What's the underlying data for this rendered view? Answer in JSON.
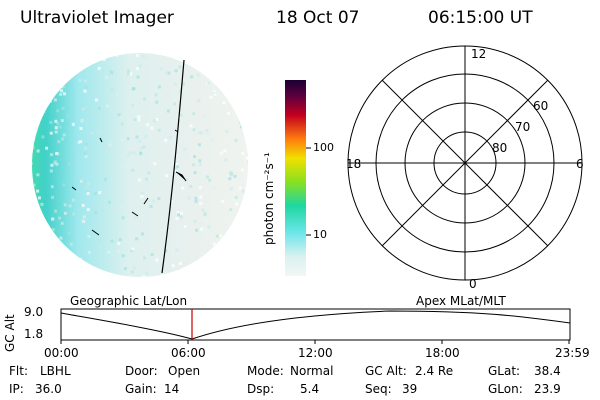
{
  "header": {
    "instrument": "Ultraviolet Imager",
    "date": "18 Oct 07",
    "time": "06:15:00 UT"
  },
  "colorbar": {
    "unit_label": "photon cm⁻²s⁻¹",
    "ticks": [
      {
        "label": "100",
        "value": 100
      },
      {
        "label": "10",
        "value": 10
      }
    ],
    "scale": "log"
  },
  "polar_plot": {
    "mlt_labels": {
      "top": "12",
      "bottom": "0",
      "left": "18",
      "right": "6"
    },
    "lat_labels": [
      "60",
      "70",
      "80"
    ]
  },
  "timeline": {
    "left_title": "Geographic Lat/Lon",
    "right_title": "Apex MLat/MLT",
    "y_axis_label": "GC Alt",
    "y_ticks": [
      "9.0",
      "1.8"
    ],
    "x_ticks": [
      "00:00",
      "06:00",
      "12:00",
      "18:00",
      "23:59"
    ],
    "marker_time": "06:15",
    "marker_color": "#cc0000"
  },
  "info": {
    "row1": [
      {
        "label": "Flt:",
        "value": "LBHL"
      },
      {
        "label": "Door:",
        "value": "Open"
      },
      {
        "label": "Mode:",
        "value": "Normal"
      },
      {
        "label": "GC Alt:",
        "value": "2.4 Re"
      },
      {
        "label": "GLat:",
        "value": "38.4"
      }
    ],
    "row2": [
      {
        "label": "IP:",
        "value": "36.0"
      },
      {
        "label": "Gain:",
        "value": "14"
      },
      {
        "label": "Dsp:",
        "value": "5.4"
      },
      {
        "label": "Seq:",
        "value": "39"
      },
      {
        "label": "GLon:",
        "value": "23.9"
      }
    ]
  }
}
